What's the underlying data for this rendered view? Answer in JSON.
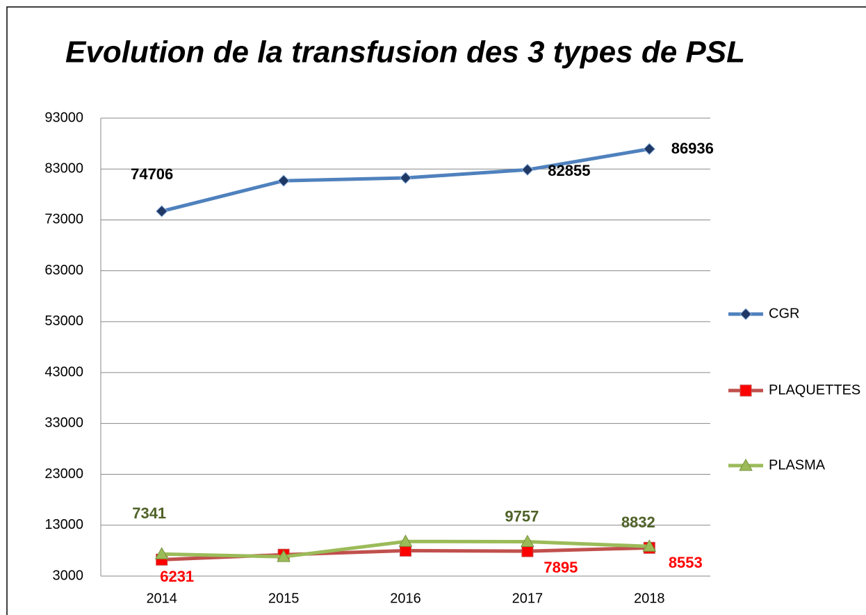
{
  "chart_data": {
    "type": "line",
    "title": "Evolution de la transfusion des 3 types de PSL",
    "categories": [
      "2014",
      "2015",
      "2016",
      "2017",
      "2018"
    ],
    "series": [
      {
        "name": "CGR",
        "color": "#4f81bd",
        "marker": "diamond",
        "marker_color": "#1f3864",
        "label_color": "#000000",
        "values": [
          74706,
          80700,
          81250,
          82855,
          86936
        ],
        "value_labels": [
          "74706",
          null,
          null,
          "82855",
          "86936"
        ]
      },
      {
        "name": "PLAQUETTES",
        "color": "#c0504d",
        "marker": "square",
        "marker_color": "#ff0000",
        "label_color": "#ff0000",
        "values": [
          6231,
          7200,
          8000,
          7895,
          8553
        ],
        "value_labels": [
          "6231",
          null,
          null,
          "7895",
          "8553"
        ]
      },
      {
        "name": "PLASMA",
        "color": "#9bbb59",
        "marker": "triangle",
        "marker_color": "#9bbb59",
        "label_color": "#4f6228",
        "values": [
          7341,
          6800,
          9800,
          9757,
          8832
        ],
        "value_labels": [
          "7341",
          null,
          null,
          "9757",
          "8832"
        ]
      }
    ],
    "ylim": [
      3000,
      93000
    ],
    "yticks": [
      3000,
      13000,
      23000,
      33000,
      43000,
      53000,
      63000,
      73000,
      83000,
      93000
    ],
    "grid": true,
    "legend": "right"
  }
}
